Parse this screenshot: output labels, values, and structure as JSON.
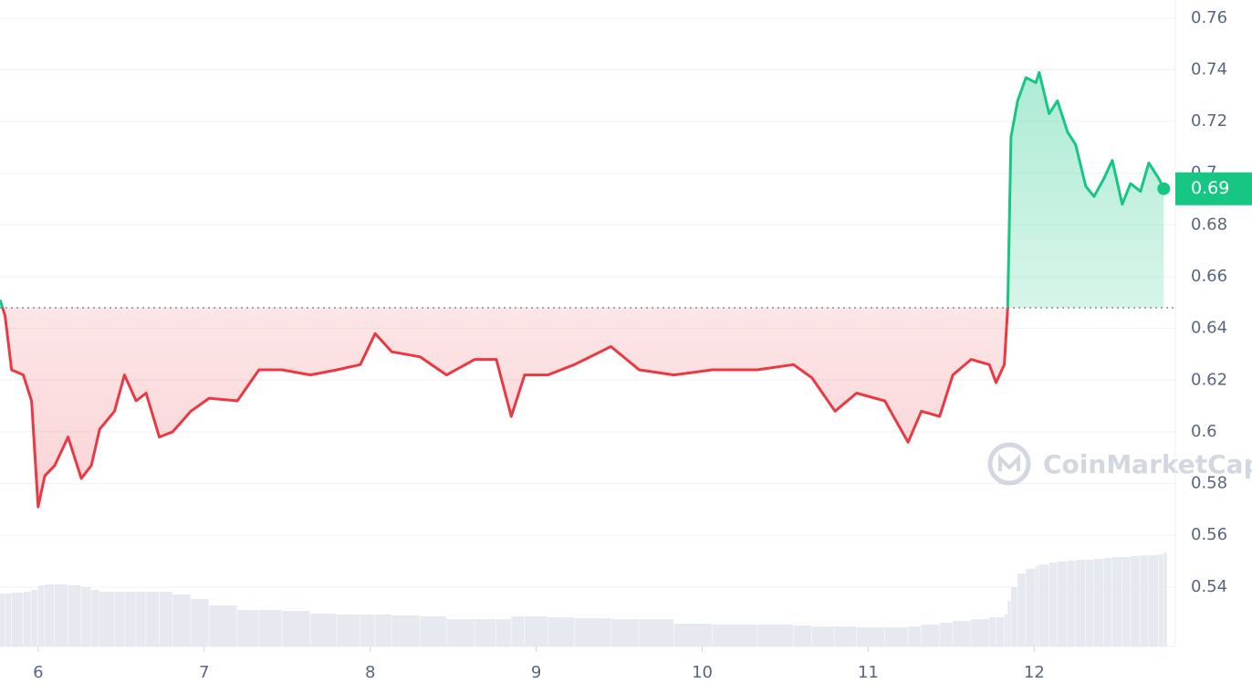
{
  "chart_data": {
    "type": "line",
    "x": [
      5.77,
      5.8,
      5.84,
      5.91,
      5.96,
      6.0,
      6.04,
      6.1,
      6.18,
      6.26,
      6.32,
      6.37,
      6.46,
      6.52,
      6.59,
      6.65,
      6.73,
      6.81,
      6.92,
      7.03,
      7.2,
      7.33,
      7.47,
      7.64,
      7.8,
      7.94,
      8.03,
      8.13,
      8.3,
      8.46,
      8.63,
      8.76,
      8.85,
      8.93,
      9.07,
      9.23,
      9.45,
      9.62,
      9.83,
      10.06,
      10.33,
      10.55,
      10.66,
      10.8,
      10.93,
      11.1,
      11.24,
      11.32,
      11.43,
      11.51,
      11.62,
      11.73,
      11.77,
      11.82,
      11.84,
      11.86,
      11.9,
      11.95,
      12.01,
      12.03,
      12.09,
      12.14,
      12.2,
      12.25,
      12.31,
      12.36,
      12.42,
      12.47,
      12.53,
      12.58,
      12.64,
      12.69,
      12.75,
      12.78
    ],
    "values": [
      0.651,
      0.645,
      0.624,
      0.622,
      0.612,
      0.571,
      0.583,
      0.587,
      0.598,
      0.582,
      0.587,
      0.601,
      0.608,
      0.622,
      0.612,
      0.615,
      0.598,
      0.6,
      0.608,
      0.613,
      0.612,
      0.624,
      0.624,
      0.622,
      0.624,
      0.626,
      0.638,
      0.631,
      0.629,
      0.622,
      0.628,
      0.628,
      0.606,
      0.622,
      0.622,
      0.626,
      0.633,
      0.624,
      0.622,
      0.624,
      0.624,
      0.626,
      0.621,
      0.608,
      0.615,
      0.612,
      0.596,
      0.608,
      0.606,
      0.622,
      0.628,
      0.626,
      0.619,
      0.626,
      0.648,
      0.714,
      0.728,
      0.737,
      0.735,
      0.739,
      0.723,
      0.728,
      0.716,
      0.711,
      0.695,
      0.691,
      0.698,
      0.705,
      0.688,
      0.696,
      0.693,
      0.704,
      0.698,
      0.694
    ],
    "volume": [
      58,
      58,
      59,
      60,
      62,
      67,
      68,
      68,
      67,
      65,
      62,
      60,
      60,
      60,
      60,
      60,
      60,
      57,
      52,
      45,
      40,
      40,
      39,
      36,
      35,
      35,
      35,
      34,
      33,
      30,
      30,
      30,
      33,
      33,
      32,
      31,
      30,
      30,
      25,
      24,
      24,
      23,
      22,
      22,
      21,
      21,
      22,
      24,
      26,
      28,
      30,
      32,
      32,
      35,
      50,
      65,
      80,
      85,
      88,
      90,
      92,
      93,
      94,
      95,
      95,
      96,
      97,
      98,
      98,
      99,
      100,
      100,
      101,
      103
    ],
    "vlim": [
      0,
      120
    ],
    "baseline": 0.648,
    "last_label": "0.69",
    "colors": {
      "up": "#16c784",
      "down": "#ea3943"
    },
    "xlim": [
      5.77,
      12.85
    ],
    "xticks": [
      6,
      7,
      8,
      9,
      10,
      11,
      12
    ],
    "ylim": [
      0.517,
      0.767
    ],
    "yticks": [
      0.54,
      0.56,
      0.58,
      0.6,
      0.62,
      0.64,
      0.66,
      0.68,
      0.7,
      0.72,
      0.74,
      0.76
    ],
    "grid": true,
    "watermark": "CoinMarketCap"
  }
}
